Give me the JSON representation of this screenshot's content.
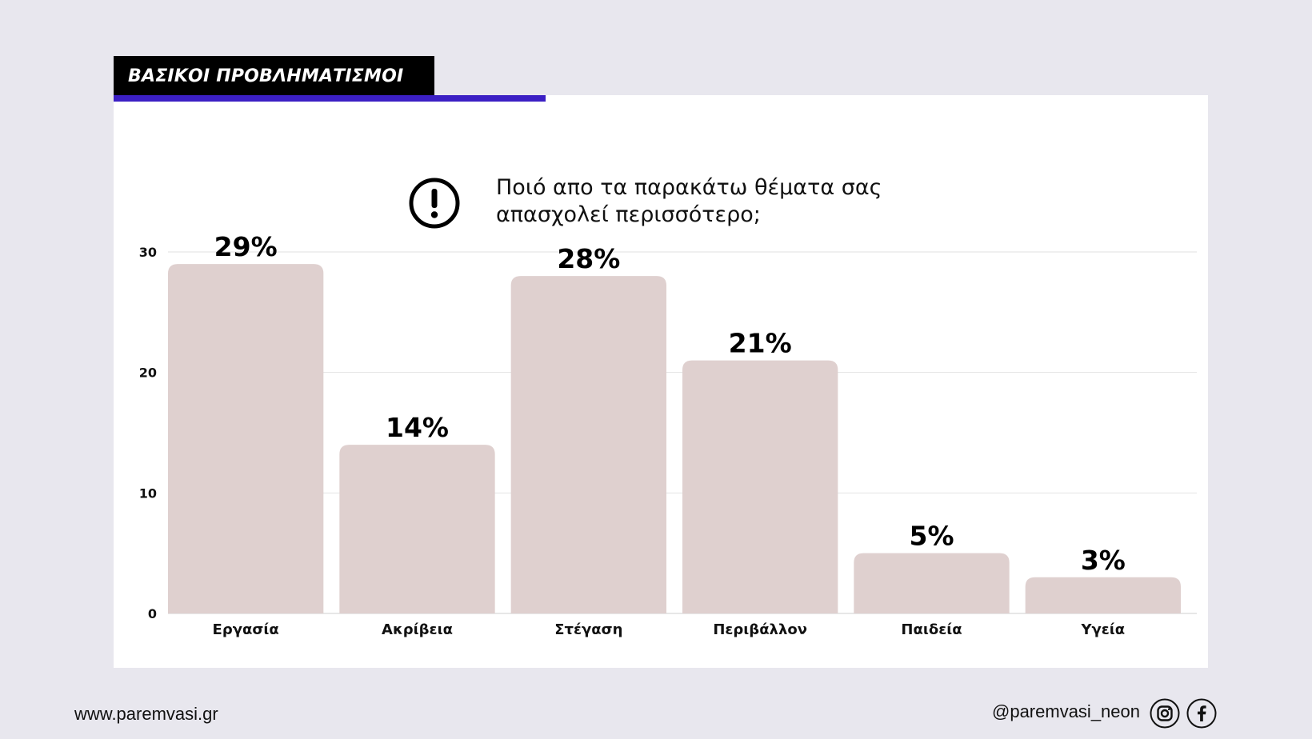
{
  "header": {
    "title": "ΒΑΣΙΚΟΙ ΠΡΟΒΛΗΜΑΤΙΣΜΟΙ"
  },
  "question": {
    "line1": "Ποιό απο τα παρακάτω θέματα σας",
    "line2": "απασχολεί περισσότερο;",
    "icon": "exclamation-circle-icon"
  },
  "colors": {
    "bar": "#dfd0cf",
    "accent": "#3b1fc4",
    "header_bg": "#000000",
    "page_bg": "#e8e7ee"
  },
  "chart_data": {
    "type": "bar",
    "categories": [
      "Εργασία",
      "Ακρίβεια",
      "Στέγαση",
      "Περιβάλλον",
      "Παιδεία",
      "Υγεία"
    ],
    "values": [
      29,
      14,
      28,
      21,
      5,
      3
    ],
    "labels": [
      "29%",
      "14%",
      "28%",
      "21%",
      "5%",
      "3%"
    ],
    "yticks": [
      0,
      10,
      20,
      30
    ],
    "ylim": [
      0,
      30
    ],
    "grid": true
  },
  "footer": {
    "website": "www.paremvasi.gr",
    "handle": "@paremvasi_neon",
    "icons": [
      "instagram-icon",
      "facebook-icon"
    ]
  }
}
